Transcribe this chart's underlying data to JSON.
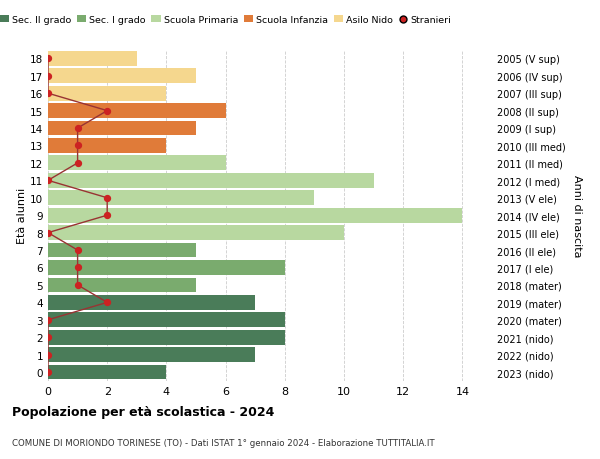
{
  "ages": [
    18,
    17,
    16,
    15,
    14,
    13,
    12,
    11,
    10,
    9,
    8,
    7,
    6,
    5,
    4,
    3,
    2,
    1,
    0
  ],
  "years": [
    "2005 (V sup)",
    "2006 (IV sup)",
    "2007 (III sup)",
    "2008 (II sup)",
    "2009 (I sup)",
    "2010 (III med)",
    "2011 (II med)",
    "2012 (I med)",
    "2013 (V ele)",
    "2014 (IV ele)",
    "2015 (III ele)",
    "2016 (II ele)",
    "2017 (I ele)",
    "2018 (mater)",
    "2019 (mater)",
    "2020 (mater)",
    "2021 (nido)",
    "2022 (nido)",
    "2023 (nido)"
  ],
  "bar_values": [
    4,
    7,
    8,
    8,
    7,
    5,
    8,
    5,
    10,
    14,
    9,
    11,
    6,
    4,
    5,
    6,
    4,
    5,
    3
  ],
  "bar_colors": [
    "#4a7c59",
    "#4a7c59",
    "#4a7c59",
    "#4a7c59",
    "#4a7c59",
    "#7aab6e",
    "#7aab6e",
    "#7aab6e",
    "#b8d8a0",
    "#b8d8a0",
    "#b8d8a0",
    "#b8d8a0",
    "#b8d8a0",
    "#e07b39",
    "#e07b39",
    "#e07b39",
    "#f5d78e",
    "#f5d78e",
    "#f5d78e"
  ],
  "stranieri_x": [
    0,
    0,
    0,
    0,
    2,
    1,
    1,
    1,
    0,
    2,
    2,
    0,
    1,
    1,
    1,
    2,
    0,
    0,
    0
  ],
  "legend_labels": [
    "Sec. II grado",
    "Sec. I grado",
    "Scuola Primaria",
    "Scuola Infanzia",
    "Asilo Nido",
    "Stranieri"
  ],
  "legend_colors": [
    "#4a7c59",
    "#7aab6e",
    "#b8d8a0",
    "#e07b39",
    "#f5d78e",
    "#cc2222"
  ],
  "ylabel": "Età alunni",
  "ylabel2": "Anni di nascita",
  "title": "Popolazione per età scolastica - 2024",
  "subtitle": "COMUNE DI MORIONDO TORINESE (TO) - Dati ISTAT 1° gennaio 2024 - Elaborazione TUTTITALIA.IT",
  "xlim": [
    0,
    15
  ],
  "xticks": [
    0,
    2,
    4,
    6,
    8,
    10,
    12,
    14
  ],
  "bg_color": "#ffffff",
  "grid_color": "#cccccc",
  "stranieri_line_color": "#993333",
  "stranieri_dot_color": "#cc2222"
}
